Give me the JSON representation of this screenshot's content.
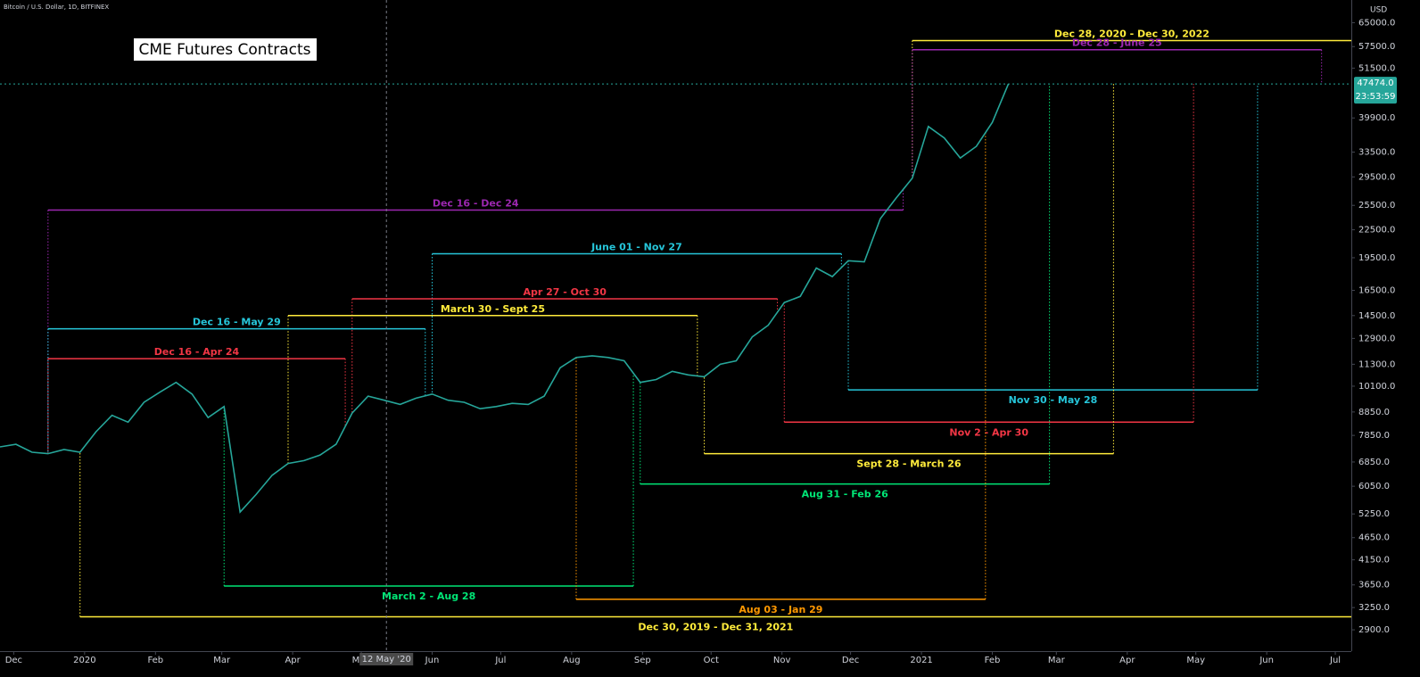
{
  "header": "Bitcoin / U.S. Dollar, 1D, BITFINEX",
  "chart_data": {
    "type": "line",
    "title": "CME Futures Contracts",
    "y_axis_unit": "USD",
    "log_scale": true,
    "xlim": [
      "2019-11-25",
      "2021-07-08"
    ],
    "ylim": [
      2600,
      73000
    ],
    "xticks": [
      {
        "value": "2019-12-01",
        "label": "Dec"
      },
      {
        "value": "2020-01-01",
        "label": "2020"
      },
      {
        "value": "2020-02-01",
        "label": "Feb"
      },
      {
        "value": "2020-03-01",
        "label": "Mar"
      },
      {
        "value": "2020-04-01",
        "label": "Apr"
      },
      {
        "value": "2020-05-01",
        "label": "May"
      },
      {
        "value": "2020-06-01",
        "label": "Jun"
      },
      {
        "value": "2020-07-01",
        "label": "Jul"
      },
      {
        "value": "2020-08-01",
        "label": "Aug"
      },
      {
        "value": "2020-09-01",
        "label": "Sep"
      },
      {
        "value": "2020-10-01",
        "label": "Oct"
      },
      {
        "value": "2020-11-01",
        "label": "Nov"
      },
      {
        "value": "2020-12-01",
        "label": "Dec"
      },
      {
        "value": "2021-01-01",
        "label": "2021"
      },
      {
        "value": "2021-02-01",
        "label": "Feb"
      },
      {
        "value": "2021-03-01",
        "label": "Mar"
      },
      {
        "value": "2021-04-01",
        "label": "Apr"
      },
      {
        "value": "2021-05-01",
        "label": "May"
      },
      {
        "value": "2021-06-01",
        "label": "Jun"
      },
      {
        "value": "2021-07-01",
        "label": "Jul"
      }
    ],
    "yticks": [
      {
        "value": 65000,
        "label": "65000.0"
      },
      {
        "value": 57500,
        "label": "57500.0"
      },
      {
        "value": 51500,
        "label": "51500.0"
      },
      {
        "value": 39900,
        "label": "39900.0"
      },
      {
        "value": 33500,
        "label": "33500.0"
      },
      {
        "value": 29500,
        "label": "29500.0"
      },
      {
        "value": 25500,
        "label": "25500.0"
      },
      {
        "value": 22500,
        "label": "22500.0"
      },
      {
        "value": 19500,
        "label": "19500.0"
      },
      {
        "value": 16500,
        "label": "16500.0"
      },
      {
        "value": 14500,
        "label": "14500.0"
      },
      {
        "value": 12900,
        "label": "12900.0"
      },
      {
        "value": 11300,
        "label": "11300.0"
      },
      {
        "value": 10100,
        "label": "10100.0"
      },
      {
        "value": 8850,
        "label": "8850.0"
      },
      {
        "value": 7850,
        "label": "7850.0"
      },
      {
        "value": 6850,
        "label": "6850.0"
      },
      {
        "value": 6050,
        "label": "6050.0"
      },
      {
        "value": 5250,
        "label": "5250.0"
      },
      {
        "value": 4650,
        "label": "4650.0"
      },
      {
        "value": 4150,
        "label": "4150.0"
      },
      {
        "value": 3650,
        "label": "3650.0"
      },
      {
        "value": 3250,
        "label": "3250.0"
      },
      {
        "value": 2900,
        "label": "2900.0"
      }
    ],
    "x": [
      "2019-11-25",
      "2019-12-02",
      "2019-12-09",
      "2019-12-16",
      "2019-12-23",
      "2019-12-30",
      "2020-01-06",
      "2020-01-13",
      "2020-01-20",
      "2020-01-27",
      "2020-02-03",
      "2020-02-10",
      "2020-02-17",
      "2020-02-24",
      "2020-03-02",
      "2020-03-09",
      "2020-03-16",
      "2020-03-23",
      "2020-03-30",
      "2020-04-06",
      "2020-04-13",
      "2020-04-20",
      "2020-04-27",
      "2020-05-04",
      "2020-05-11",
      "2020-05-18",
      "2020-05-25",
      "2020-06-01",
      "2020-06-08",
      "2020-06-15",
      "2020-06-22",
      "2020-06-29",
      "2020-07-06",
      "2020-07-13",
      "2020-07-20",
      "2020-07-27",
      "2020-08-03",
      "2020-08-10",
      "2020-08-17",
      "2020-08-24",
      "2020-08-31",
      "2020-09-07",
      "2020-09-14",
      "2020-09-21",
      "2020-09-28",
      "2020-10-05",
      "2020-10-12",
      "2020-10-19",
      "2020-10-26",
      "2020-11-02",
      "2020-11-09",
      "2020-11-16",
      "2020-11-23",
      "2020-11-30",
      "2020-12-07",
      "2020-12-14",
      "2020-12-21",
      "2020-12-28",
      "2021-01-04",
      "2021-01-11",
      "2021-01-18",
      "2021-01-25",
      "2021-02-01",
      "2021-02-08"
    ],
    "series": [
      {
        "name": "Bitcoin / U.S. Dollar",
        "color": "#26a69a",
        "values": [
          7400,
          7500,
          7200,
          7150,
          7300,
          7200,
          8000,
          8700,
          8400,
          9300,
          9800,
          10300,
          9700,
          8600,
          9100,
          5300,
          5800,
          6400,
          6800,
          6900,
          7100,
          7500,
          8800,
          9600,
          9400,
          9200,
          9500,
          9700,
          9400,
          9300,
          9000,
          9100,
          9250,
          9200,
          9600,
          11100,
          11700,
          11800,
          11700,
          11500,
          10300,
          10450,
          10900,
          10700,
          10600,
          11300,
          11500,
          13000,
          13800,
          15500,
          16000,
          18500,
          17700,
          19200,
          19100,
          23800,
          26500,
          29300,
          38200,
          36000,
          32500,
          34500,
          39000,
          47474
        ]
      }
    ],
    "last_price": {
      "value": 47474,
      "label": "47474.0"
    },
    "countdown": "23:53:59",
    "crosshair": {
      "x": "2020-05-12",
      "label": "12 May '20"
    },
    "annotations": [
      {
        "label": "Dec 28, 2020 - Dec 30, 2022",
        "color": "#ffeb3b",
        "start": "2020-12-28",
        "end": "2022-12-30",
        "level": 59300
      },
      {
        "label": "Dec 28 - June 25",
        "color": "#9c27b0",
        "start": "2020-12-28",
        "end": "2021-06-25",
        "level": 56600
      },
      {
        "label": "Dec 16 - Dec 24",
        "color": "#9c27b0",
        "start": "2019-12-16",
        "end": "2020-12-24",
        "level": 24900
      },
      {
        "label": "June 01 - Nov 27",
        "color": "#26c6da",
        "start": "2020-06-01",
        "end": "2020-11-27",
        "level": 19900
      },
      {
        "label": "Apr 27 - Oct 30",
        "color": "#f23645",
        "start": "2020-04-27",
        "end": "2020-10-30",
        "level": 15800
      },
      {
        "label": "March 30 - Sept 25",
        "color": "#ffeb3b",
        "start": "2020-03-30",
        "end": "2020-09-25",
        "level": 14500
      },
      {
        "label": "Dec 16 - May 29",
        "color": "#26c6da",
        "start": "2019-12-16",
        "end": "2020-05-29",
        "level": 13550
      },
      {
        "label": "Dec 16 - Apr 24",
        "color": "#f23645",
        "start": "2019-12-16",
        "end": "2020-04-24",
        "level": 11630
      },
      {
        "label": "Nov 30 - May 28",
        "color": "#26c6da",
        "start": "2020-11-30",
        "end": "2021-05-28",
        "level": 9910
      },
      {
        "label": "Nov 2 - Apr 30",
        "color": "#f23645",
        "start": "2020-11-02",
        "end": "2021-04-30",
        "level": 8400
      },
      {
        "label": "Sept 28 - March 26",
        "color": "#ffeb3b",
        "start": "2020-09-28",
        "end": "2021-03-26",
        "level": 7150
      },
      {
        "label": "Aug 31 - Feb 26",
        "color": "#00e676",
        "start": "2020-08-31",
        "end": "2021-02-26",
        "level": 6120
      },
      {
        "label": "March 2 - Aug 28",
        "color": "#00e676",
        "start": "2020-03-02",
        "end": "2020-08-28",
        "level": 3630
      },
      {
        "label": "Aug 03 - Jan 29",
        "color": "#ff9800",
        "start": "2020-08-03",
        "end": "2021-01-29",
        "level": 3390
      },
      {
        "label": "Dec 30, 2019 - Dec 31, 2021",
        "color": "#ffeb3b",
        "start": "2019-12-30",
        "end": "2021-12-31",
        "level": 3100
      }
    ]
  }
}
